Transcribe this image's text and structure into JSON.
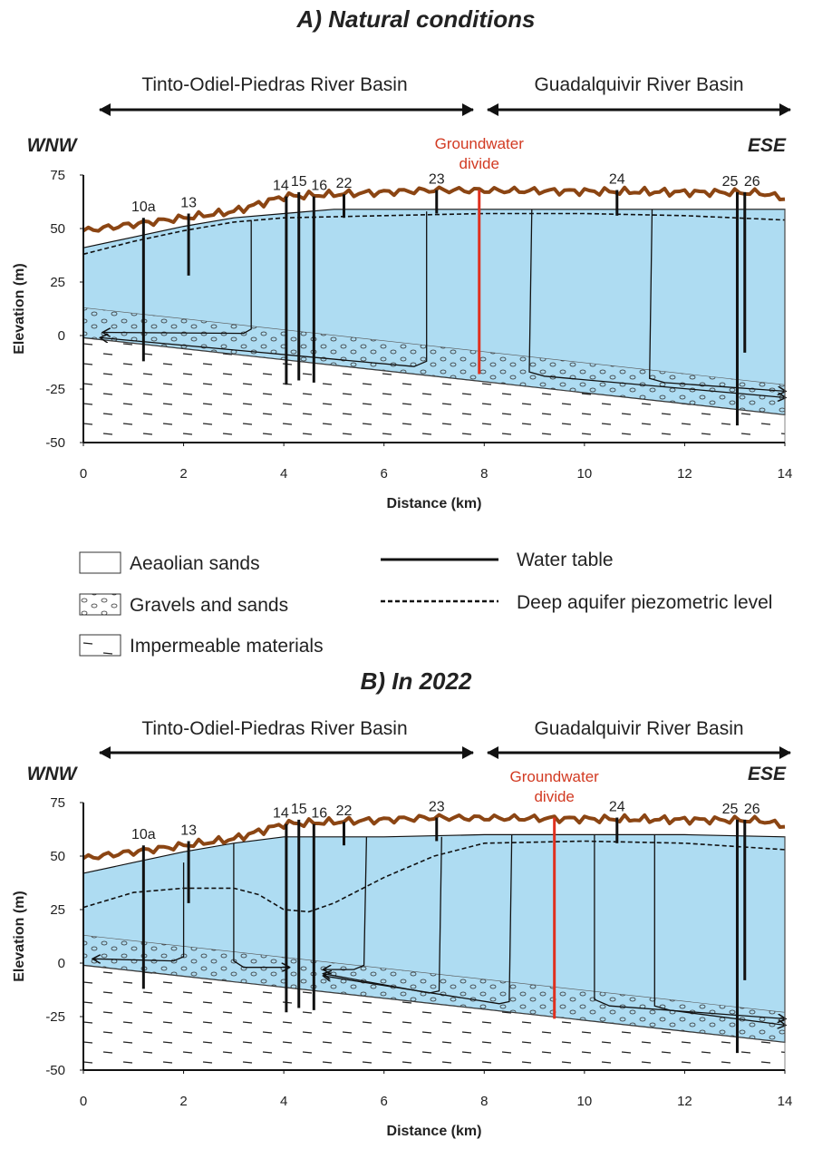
{
  "panels": [
    {
      "title": "A) Natural conditions",
      "left_basin": "Tinto-Odiel-Piedras River Basin",
      "right_basin": "Guadalquivir River Basin",
      "left_direction": "WNW",
      "right_direction": "ESE",
      "divide_label": [
        "Groundwater",
        "divide"
      ],
      "y_label": "Elevation (m)",
      "x_label": "Distance (km)",
      "xlim": [
        0,
        14
      ],
      "ylim": [
        -50,
        75
      ],
      "xticks": [
        0,
        2,
        4,
        6,
        8,
        10,
        12,
        14
      ],
      "yticks": [
        -50,
        -25,
        0,
        25,
        50,
        75
      ],
      "wells": [
        "10a",
        "13",
        "14",
        "15",
        "16",
        "22",
        "23",
        "24",
        "25",
        "26"
      ]
    },
    {
      "title": "B) In 2022",
      "left_basin": "Tinto-Odiel-Piedras River Basin",
      "right_basin": "Guadalquivir River Basin",
      "left_direction": "WNW",
      "right_direction": "ESE",
      "divide_label": [
        "Groundwater",
        "divide"
      ],
      "y_label": "Elevation (m)",
      "x_label": "Distance (km)",
      "xlim": [
        0,
        14
      ],
      "ylim": [
        -50,
        75
      ],
      "xticks": [
        0,
        2,
        4,
        6,
        8,
        10,
        12,
        14
      ],
      "yticks": [
        -50,
        -25,
        0,
        25,
        50,
        75
      ],
      "wells": [
        "10a",
        "13",
        "14",
        "15",
        "16",
        "22",
        "23",
        "24",
        "25",
        "26"
      ]
    }
  ],
  "legend": {
    "items": [
      "Aeaolian sands",
      "Gravels and sands",
      "Impermeable materials",
      "Water table",
      "Deep aquifer piezometric level"
    ]
  }
}
